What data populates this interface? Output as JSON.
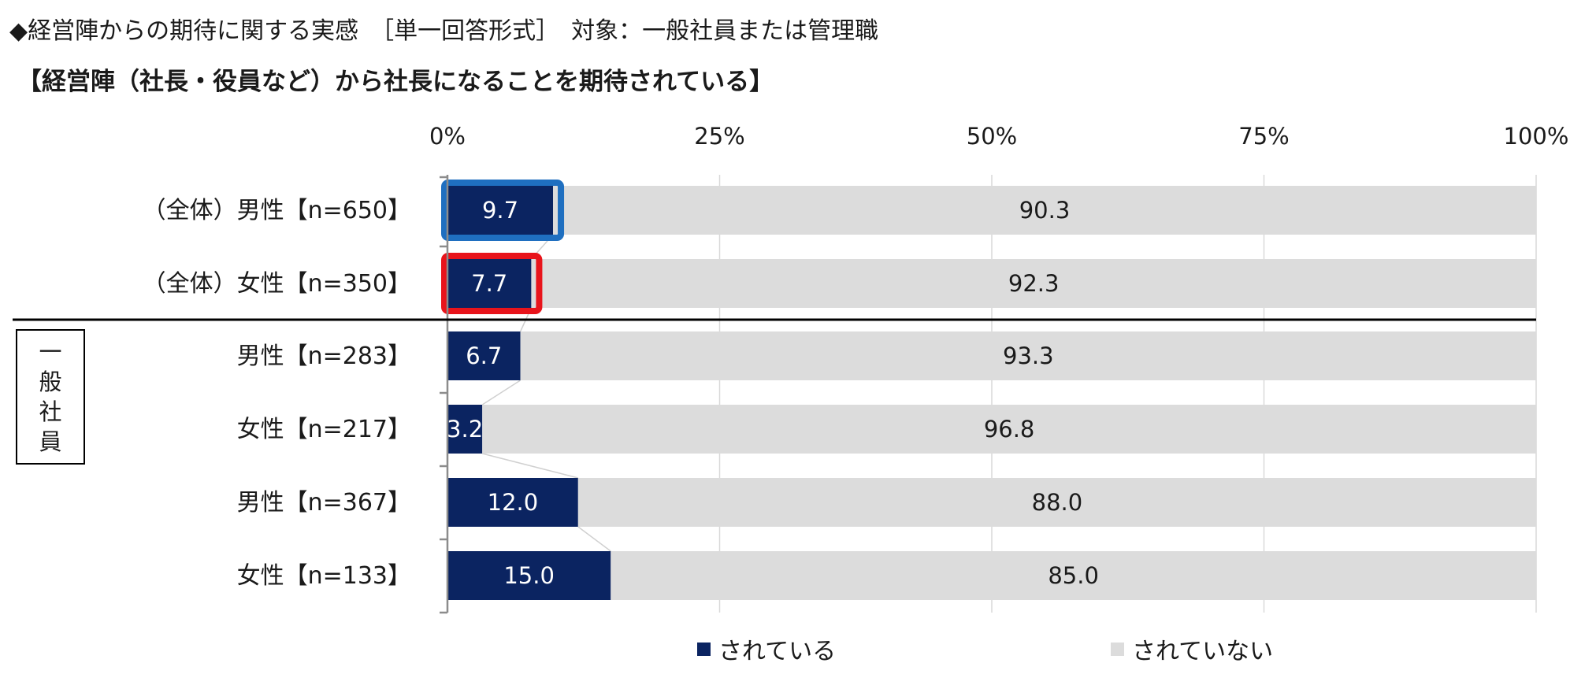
{
  "header": {
    "title": "◆経営陣からの期待に関する実感　［単一回答形式］　対象：一般社員または管理職",
    "subtitle": "【経営陣（社長・役員など）から社長になることを期待されている】"
  },
  "group_label": [
    "一",
    "般",
    "社",
    "員"
  ],
  "legend": [
    {
      "label": "されている",
      "color": "#0b2461"
    },
    {
      "label": "されていない",
      "color": "#dcdcdc"
    }
  ],
  "chart_data": {
    "type": "bar",
    "orientation": "horizontal",
    "stacked": true,
    "percent": true,
    "categories": [
      "（全体）男性【n=650】",
      "（全体）女性【n=350】",
      "男性【n=283】",
      "女性【n=217】",
      "男性【n=367】",
      "女性【n=133】"
    ],
    "series": [
      {
        "name": "されている",
        "color": "#0b2461",
        "values": [
          9.7,
          7.7,
          6.7,
          3.2,
          12.0,
          15.0
        ],
        "labels": [
          "9.7",
          "7.7",
          "6.7",
          "3.2",
          "12.0",
          "15.0"
        ]
      },
      {
        "name": "されていない",
        "color": "#dcdcdc",
        "values": [
          90.3,
          92.3,
          93.3,
          96.8,
          88.0,
          85.0
        ],
        "labels": [
          "90.3",
          "92.3",
          "93.3",
          "96.8",
          "88.0",
          "85.0"
        ]
      }
    ],
    "x_ticks": [
      "0%",
      "25%",
      "50%",
      "75%",
      "100%"
    ],
    "xlim": [
      0,
      100
    ],
    "grid": true,
    "legend_position": "bottom",
    "highlights": [
      {
        "category_index": 0,
        "color": "#1f6fc0"
      },
      {
        "category_index": 1,
        "color": "#e8141b"
      }
    ]
  }
}
